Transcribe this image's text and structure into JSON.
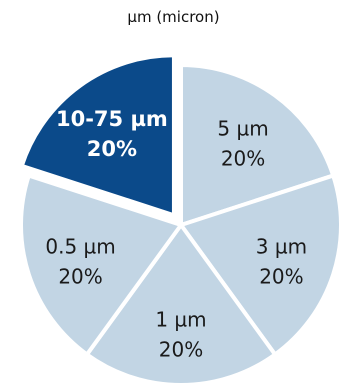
{
  "chart_data": {
    "type": "pie",
    "title": "µm (micron)",
    "slices": [
      {
        "label": "5 µm",
        "value": 20,
        "percent_label": "20%",
        "color": "#c2d5e4",
        "text_color": "#1a1a1a",
        "exploded": false
      },
      {
        "label": "3 µm",
        "value": 20,
        "percent_label": "20%",
        "color": "#c2d5e4",
        "text_color": "#1a1a1a",
        "exploded": false
      },
      {
        "label": "1 µm",
        "value": 20,
        "percent_label": "20%",
        "color": "#c2d5e4",
        "text_color": "#1a1a1a",
        "exploded": false
      },
      {
        "label": "0.5 µm",
        "value": 20,
        "percent_label": "20%",
        "color": "#c2d5e4",
        "text_color": "#1a1a1a",
        "exploded": false
      },
      {
        "label": "10-75 µm",
        "value": 20,
        "percent_label": "20%",
        "color": "#0b4a8a",
        "text_color": "#ffffff",
        "exploded": true
      }
    ],
    "start_angle_deg": 0,
    "direction": "clockwise"
  }
}
